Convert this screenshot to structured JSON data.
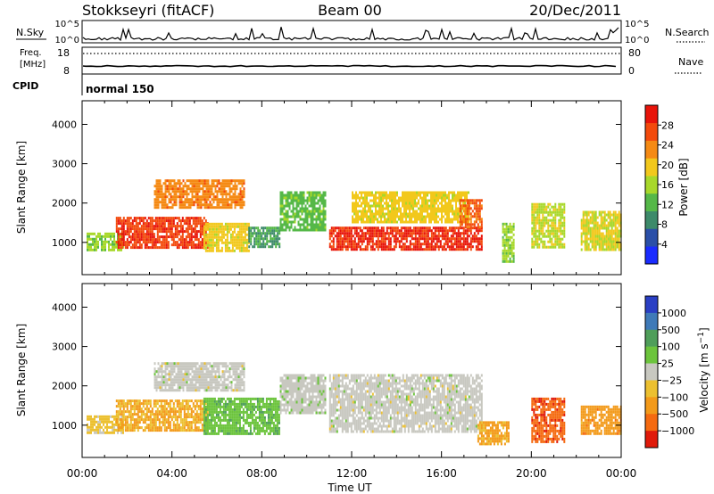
{
  "header": {
    "station": "Stokkseyri (fitACF)",
    "beam": "Beam 00",
    "date": "20/Dec/2011"
  },
  "top_panels": {
    "nsky_label": "N.Sky",
    "nsky_ticks": [
      "10^5",
      "10^0"
    ],
    "nsearch_label": "N.Search",
    "nsearch_ticks": [
      "10^5",
      "10^0"
    ],
    "freq_label_1": "Freq.",
    "freq_label_2": "[MHz]",
    "freq_ticks": [
      "18",
      "8"
    ],
    "nave_label": "Nave",
    "nave_ticks": [
      "80",
      "0"
    ],
    "cpid_label": "CPID",
    "cpid_value": "normal 150"
  },
  "colors": {
    "power": [
      "#1a2bff",
      "#2a4fa8",
      "#3d8a6a",
      "#55b848",
      "#a8d82a",
      "#f2c81c",
      "#f58a14",
      "#f34a0c",
      "#e8140a"
    ],
    "velocity": [
      "#2a3fc4",
      "#3f7ab8",
      "#4f9e5a",
      "#6cc43c",
      "#c8c8c0",
      "#ecc030",
      "#f39a1a",
      "#f56a10",
      "#e01a0a"
    ]
  },
  "chart_data": [
    {
      "type": "heatmap",
      "ylabel": "Slant Range [km]",
      "xlabel": "Time UT",
      "x_ticks": [
        "00:00",
        "04:00",
        "08:00",
        "12:00",
        "16:00",
        "20:00",
        "00:00"
      ],
      "y_ticks": [
        1000,
        2000,
        3000,
        4000
      ],
      "ylim": [
        180,
        4600
      ],
      "xlim_hours": [
        0,
        24
      ],
      "colorbar": {
        "label": "Power [dB]",
        "ticks": [
          "28",
          "24",
          "20",
          "16",
          "12",
          "8",
          "4"
        ],
        "range": [
          0,
          30
        ]
      },
      "echo_regions": [
        {
          "t0": 0.2,
          "t1": 1.8,
          "r0": 800,
          "r1": 1250,
          "value": 14
        },
        {
          "t0": 1.5,
          "t1": 5.6,
          "r0": 850,
          "r1": 1650,
          "value": 26
        },
        {
          "t0": 3.2,
          "t1": 7.2,
          "r0": 1900,
          "r1": 2600,
          "value": 22
        },
        {
          "t0": 5.4,
          "t1": 7.4,
          "r0": 800,
          "r1": 1500,
          "value": 18
        },
        {
          "t0": 7.4,
          "t1": 8.8,
          "r0": 900,
          "r1": 1400,
          "value": 10
        },
        {
          "t0": 8.8,
          "t1": 10.8,
          "r0": 1300,
          "r1": 2300,
          "value": 12
        },
        {
          "t0": 11.0,
          "t1": 17.8,
          "r0": 850,
          "r1": 1400,
          "value": 27
        },
        {
          "t0": 12.0,
          "t1": 17.2,
          "r0": 1500,
          "r1": 2300,
          "value": 18
        },
        {
          "t0": 16.8,
          "t1": 17.8,
          "r0": 1400,
          "r1": 2100,
          "value": 24
        },
        {
          "t0": 18.7,
          "t1": 19.2,
          "r0": 500,
          "r1": 1500,
          "value": 14
        },
        {
          "t0": 20.0,
          "t1": 21.5,
          "r0": 900,
          "r1": 2000,
          "value": 16
        },
        {
          "t0": 22.2,
          "t1": 24.0,
          "r0": 800,
          "r1": 1800,
          "value": 17
        }
      ]
    },
    {
      "type": "heatmap",
      "ylabel": "Slant Range [km]",
      "xlabel": "Time UT",
      "x_ticks": [
        "00:00",
        "04:00",
        "08:00",
        "12:00",
        "16:00",
        "20:00",
        "00:00"
      ],
      "y_ticks": [
        1000,
        2000,
        3000,
        4000
      ],
      "ylim": [
        180,
        4600
      ],
      "xlim_hours": [
        0,
        24
      ],
      "colorbar": {
        "label": "Velocity [m s^-1]",
        "ticks": [
          "1000",
          "500",
          "100",
          "25",
          "−25",
          "−100",
          "−500",
          "−1000"
        ],
        "range": [
          -1000,
          1000
        ]
      },
      "echo_regions": [
        {
          "t0": 0.2,
          "t1": 1.8,
          "r0": 800,
          "r1": 1250,
          "value": -200
        },
        {
          "t0": 1.5,
          "t1": 5.6,
          "r0": 850,
          "r1": 1650,
          "value": -350
        },
        {
          "t0": 3.2,
          "t1": 7.2,
          "r0": 1900,
          "r1": 2600,
          "value": 0
        },
        {
          "t0": 5.4,
          "t1": 8.8,
          "r0": 800,
          "r1": 1700,
          "value": 250
        },
        {
          "t0": 8.8,
          "t1": 10.8,
          "r0": 1300,
          "r1": 2300,
          "value": 20
        },
        {
          "t0": 11.0,
          "t1": 17.8,
          "r0": 850,
          "r1": 2300,
          "value": 0
        },
        {
          "t0": 17.6,
          "t1": 19.0,
          "r0": 500,
          "r1": 1100,
          "value": -400
        },
        {
          "t0": 20.0,
          "t1": 21.5,
          "r0": 600,
          "r1": 1700,
          "value": -700
        },
        {
          "t0": 22.2,
          "t1": 24.0,
          "r0": 800,
          "r1": 1500,
          "value": -450
        }
      ]
    }
  ]
}
